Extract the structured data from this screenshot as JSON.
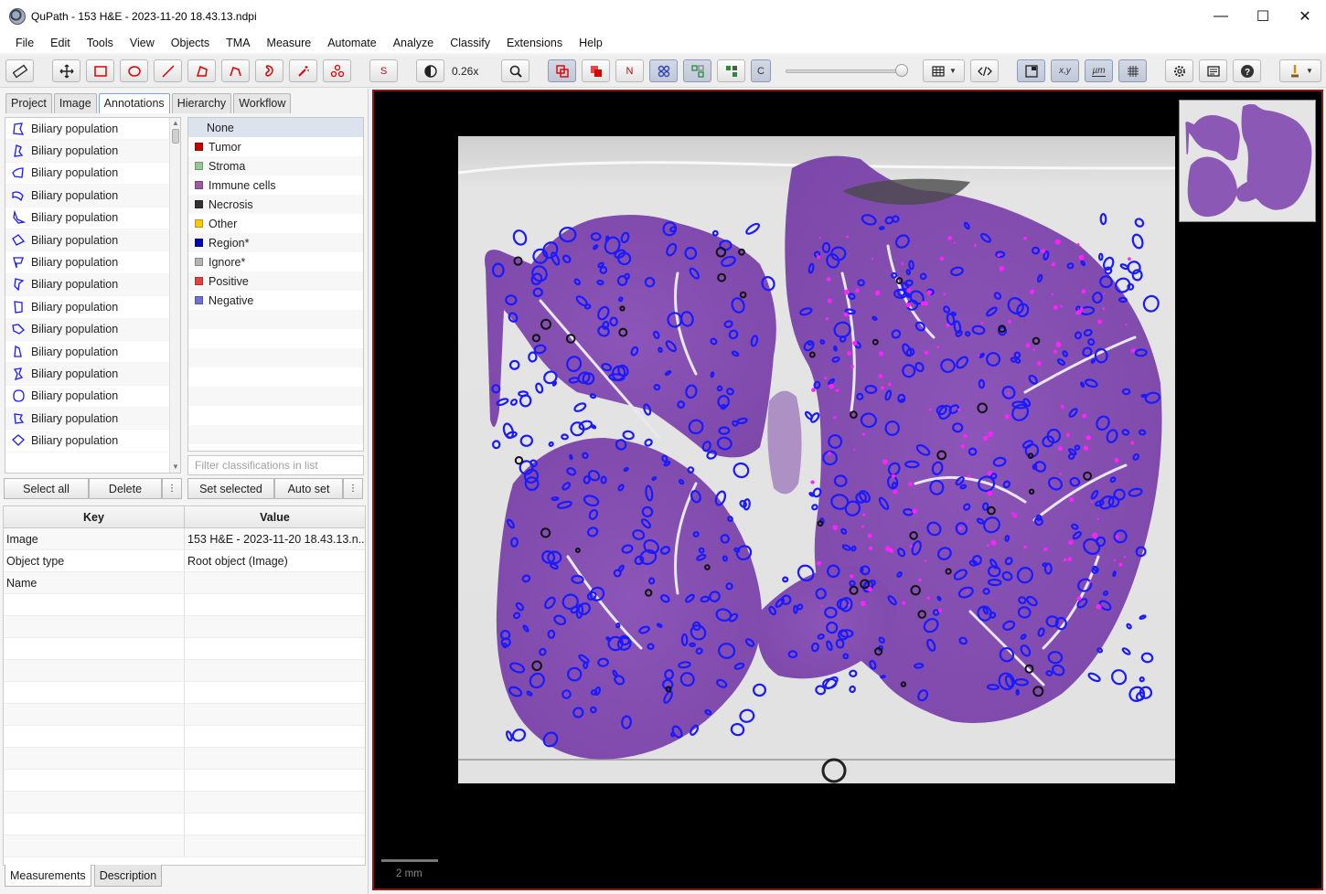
{
  "window": {
    "title": "QuPath - 153 H&E - 2023-11-20 18.43.13.ndpi"
  },
  "menu": [
    "File",
    "Edit",
    "Tools",
    "View",
    "Objects",
    "TMA",
    "Measure",
    "Automate",
    "Analyze",
    "Classify",
    "Extensions",
    "Help"
  ],
  "toolbar": {
    "zoom": "0.26x",
    "tools": [
      "measure",
      "move",
      "rectangle",
      "ellipse",
      "line",
      "polygon",
      "polyline",
      "brush",
      "wand",
      "points"
    ],
    "selection_mode": "S",
    "n_label": "N",
    "c_label": "C",
    "xy_label": "x,y",
    "um_label": "µm",
    "brightness_slider": 1.0
  },
  "left_tabs": [
    "Project",
    "Image",
    "Annotations",
    "Hierarchy",
    "Workflow"
  ],
  "active_tab": "Annotations",
  "annotations": [
    "Biliary population",
    "Biliary population",
    "Biliary population",
    "Biliary population",
    "Biliary population",
    "Biliary population",
    "Biliary population",
    "Biliary population",
    "Biliary population",
    "Biliary population",
    "Biliary population",
    "Biliary population",
    "Biliary population",
    "Biliary population",
    "Biliary population"
  ],
  "classes_header": "None",
  "classes": [
    {
      "name": "Tumor",
      "color": "#c80000"
    },
    {
      "name": "Stroma",
      "color": "#96c896"
    },
    {
      "name": "Immune cells",
      "color": "#a05aa0"
    },
    {
      "name": "Necrosis",
      "color": "#323232"
    },
    {
      "name": "Other",
      "color": "#ffc800"
    },
    {
      "name": "Region*",
      "color": "#0000b4"
    },
    {
      "name": "Ignore*",
      "color": "#b4b4b4"
    },
    {
      "name": "Positive",
      "color": "#e64040"
    },
    {
      "name": "Negative",
      "color": "#7070d8"
    }
  ],
  "filter_placeholder": "Filter classifications in list",
  "ann_buttons": {
    "select_all": "Select all",
    "delete": "Delete",
    "more": "⋮"
  },
  "class_buttons": {
    "set_selected": "Set selected",
    "auto_set": "Auto set",
    "more": "⋮"
  },
  "properties": {
    "key_header": "Key",
    "value_header": "Value",
    "rows": [
      {
        "key": "Image",
        "value": "153 H&E - 2023-11-20 18.43.13.n..."
      },
      {
        "key": "Object type",
        "value": "Root object (Image)"
      },
      {
        "key": "Name",
        "value": ""
      }
    ]
  },
  "bottom_tabs": [
    "Measurements",
    "Description"
  ],
  "viewer": {
    "scale_label": "2 mm"
  },
  "colors": {
    "annotation_outline": "#1a1aff",
    "tissue": "#8a52b4",
    "viewer_border": "#8b1a1a",
    "highlight": "#ff00ff"
  }
}
